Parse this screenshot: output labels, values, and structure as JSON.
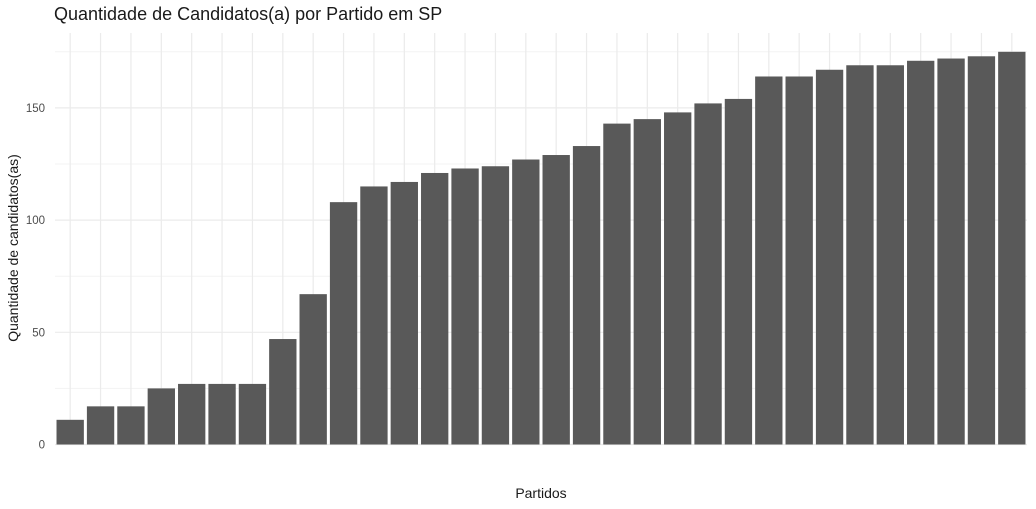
{
  "chart_data": {
    "type": "bar",
    "title": "Quantidade de Candidatos(a) por Partido em SP",
    "xlabel": "Partidos",
    "ylabel": "Quantidade de candidatos(as)",
    "ylim": [
      0,
      180
    ],
    "yticks": [
      0,
      50,
      100,
      150
    ],
    "grid": true,
    "bar_color": "#595959",
    "grid_color": "#ebebeb",
    "values": [
      11,
      17,
      17,
      25,
      27,
      27,
      27,
      47,
      67,
      108,
      115,
      117,
      121,
      123,
      124,
      127,
      129,
      133,
      143,
      145,
      148,
      152,
      154,
      164,
      164,
      167,
      169,
      169,
      171,
      172,
      173,
      175
    ]
  }
}
